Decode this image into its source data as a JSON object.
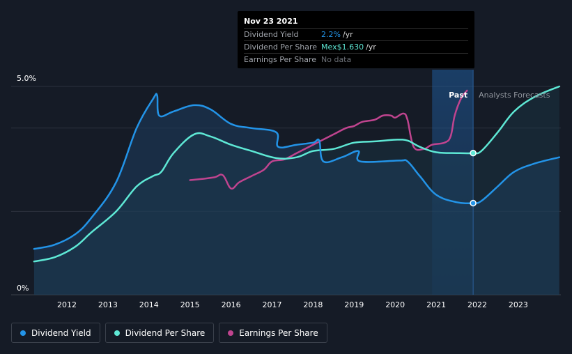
{
  "chart_data": {
    "type": "line",
    "y_ticks": [
      "5.0%",
      "0%"
    ],
    "x_ticks": [
      "2012",
      "2013",
      "2014",
      "2015",
      "2016",
      "2017",
      "2018",
      "2019",
      "2020",
      "2021",
      "2022",
      "2023"
    ],
    "region_labels": {
      "past": "Past",
      "forecast": "Analysts Forecasts"
    },
    "colors": {
      "dividend_yield": "#2394e8",
      "dividend_per_share": "#5ee8d5",
      "earnings_per_share": "#c0448f",
      "background": "#151b26"
    },
    "x_range": [
      2011.2,
      2024.0
    ],
    "y_range": [
      0,
      5.0
    ],
    "series": [
      {
        "key": "dividend_yield",
        "name": "Dividend Yield",
        "points": [
          [
            2011.2,
            1.1
          ],
          [
            2011.7,
            1.2
          ],
          [
            2012.2,
            1.45
          ],
          [
            2012.6,
            1.85
          ],
          [
            2013.2,
            2.7
          ],
          [
            2013.7,
            4.0
          ],
          [
            2014.1,
            4.7
          ],
          [
            2014.2,
            4.78
          ],
          [
            2014.25,
            4.3
          ],
          [
            2014.6,
            4.4
          ],
          [
            2015.1,
            4.55
          ],
          [
            2015.5,
            4.45
          ],
          [
            2016.0,
            4.1
          ],
          [
            2016.5,
            4.0
          ],
          [
            2017.1,
            3.9
          ],
          [
            2017.15,
            3.55
          ],
          [
            2017.6,
            3.6
          ],
          [
            2018.0,
            3.65
          ],
          [
            2018.15,
            3.7
          ],
          [
            2018.25,
            3.2
          ],
          [
            2018.7,
            3.3
          ],
          [
            2019.1,
            3.45
          ],
          [
            2019.15,
            3.2
          ],
          [
            2020.1,
            3.22
          ],
          [
            2020.3,
            3.2
          ],
          [
            2020.6,
            2.85
          ],
          [
            2021.0,
            2.4
          ],
          [
            2021.5,
            2.22
          ],
          [
            2021.9,
            2.2
          ],
          [
            2022.1,
            2.25
          ],
          [
            2022.5,
            2.6
          ],
          [
            2022.9,
            2.95
          ],
          [
            2023.4,
            3.15
          ],
          [
            2024.0,
            3.3
          ]
        ]
      },
      {
        "key": "dividend_per_share",
        "name": "Dividend Per Share",
        "points": [
          [
            2011.2,
            0.8
          ],
          [
            2011.7,
            0.9
          ],
          [
            2012.2,
            1.15
          ],
          [
            2012.6,
            1.5
          ],
          [
            2013.2,
            2.0
          ],
          [
            2013.7,
            2.6
          ],
          [
            2014.1,
            2.85
          ],
          [
            2014.3,
            2.95
          ],
          [
            2014.6,
            3.4
          ],
          [
            2015.1,
            3.85
          ],
          [
            2015.5,
            3.8
          ],
          [
            2016.0,
            3.6
          ],
          [
            2016.5,
            3.45
          ],
          [
            2017.1,
            3.28
          ],
          [
            2017.6,
            3.3
          ],
          [
            2018.0,
            3.45
          ],
          [
            2018.5,
            3.5
          ],
          [
            2019.0,
            3.65
          ],
          [
            2019.5,
            3.68
          ],
          [
            2020.0,
            3.72
          ],
          [
            2020.3,
            3.7
          ],
          [
            2020.6,
            3.55
          ],
          [
            2021.0,
            3.42
          ],
          [
            2021.5,
            3.4
          ],
          [
            2021.9,
            3.4
          ],
          [
            2022.1,
            3.45
          ],
          [
            2022.5,
            3.9
          ],
          [
            2022.9,
            4.4
          ],
          [
            2023.4,
            4.75
          ],
          [
            2024.0,
            5.0
          ]
        ]
      },
      {
        "key": "earnings_per_share",
        "name": "Earnings Per Share",
        "points": [
          [
            2015.0,
            2.75
          ],
          [
            2015.3,
            2.78
          ],
          [
            2015.6,
            2.82
          ],
          [
            2015.8,
            2.87
          ],
          [
            2016.0,
            2.55
          ],
          [
            2016.2,
            2.7
          ],
          [
            2016.5,
            2.85
          ],
          [
            2016.8,
            3.0
          ],
          [
            2017.0,
            3.2
          ],
          [
            2017.3,
            3.25
          ],
          [
            2017.6,
            3.4
          ],
          [
            2017.9,
            3.55
          ],
          [
            2018.2,
            3.7
          ],
          [
            2018.5,
            3.85
          ],
          [
            2018.8,
            4.0
          ],
          [
            2019.0,
            4.05
          ],
          [
            2019.2,
            4.15
          ],
          [
            2019.5,
            4.2
          ],
          [
            2019.7,
            4.3
          ],
          [
            2019.9,
            4.3
          ],
          [
            2020.0,
            4.25
          ],
          [
            2020.2,
            4.35
          ],
          [
            2020.3,
            4.2
          ],
          [
            2020.45,
            3.55
          ],
          [
            2020.7,
            3.5
          ],
          [
            2020.9,
            3.6
          ],
          [
            2021.2,
            3.65
          ],
          [
            2021.35,
            3.8
          ],
          [
            2021.45,
            4.3
          ],
          [
            2021.6,
            4.7
          ],
          [
            2021.75,
            4.9
          ]
        ]
      }
    ]
  },
  "tooltip": {
    "date": "Nov 23 2021",
    "rows": [
      {
        "name": "Dividend Yield",
        "value": "2.2%",
        "unit": "/yr",
        "color": "#2394e8"
      },
      {
        "name": "Dividend Per Share",
        "value": "Mex$1.630",
        "unit": "/yr",
        "color": "#5ee8d5"
      },
      {
        "name": "Earnings Per Share",
        "value": "No data",
        "unit": "",
        "color": "#6b6f76"
      }
    ]
  },
  "legend": [
    {
      "label": "Dividend Yield",
      "color": "#2394e8"
    },
    {
      "label": "Dividend Per Share",
      "color": "#5ee8d5"
    },
    {
      "label": "Earnings Per Share",
      "color": "#c0448f"
    }
  ]
}
